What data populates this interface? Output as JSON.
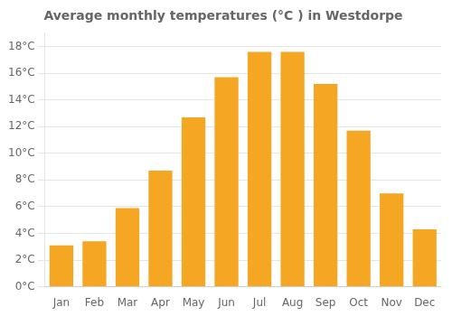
{
  "chart_data": {
    "type": "bar",
    "title": "Average monthly temperatures (°C ) in Westdorpe",
    "categories": [
      "Jan",
      "Feb",
      "Mar",
      "Apr",
      "May",
      "Jun",
      "Jul",
      "Aug",
      "Sep",
      "Oct",
      "Nov",
      "Dec"
    ],
    "values": [
      3.1,
      3.4,
      5.9,
      8.7,
      12.7,
      15.7,
      17.6,
      17.6,
      15.2,
      11.7,
      7.0,
      4.3
    ],
    "color": "#F5A623",
    "ylim": [
      0,
      19
    ],
    "yticks": [
      {
        "value": 0,
        "label": "0°C"
      },
      {
        "value": 2,
        "label": "2°C"
      },
      {
        "value": 4,
        "label": "4°C"
      },
      {
        "value": 6,
        "label": "6°C"
      },
      {
        "value": 8,
        "label": "8°C"
      },
      {
        "value": 10,
        "label": "10°C"
      },
      {
        "value": 12,
        "label": "12°C"
      },
      {
        "value": 14,
        "label": "14°C"
      },
      {
        "value": 16,
        "label": "16°C"
      },
      {
        "value": 18,
        "label": "18°C"
      }
    ],
    "grid": true
  }
}
